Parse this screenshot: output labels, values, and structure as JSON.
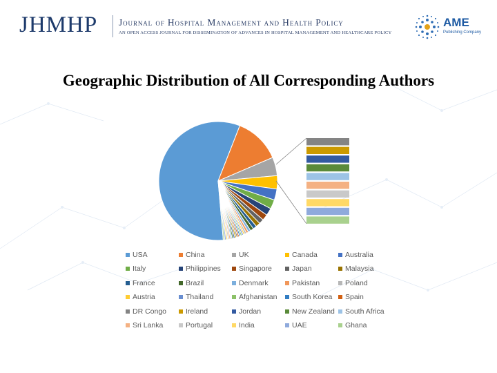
{
  "header": {
    "logo_text": "JHMHP",
    "journal_name": "Journal of Hospital Management and Health Policy",
    "journal_tagline": "an open access journal for dissemination of advances in hospital management and healthcare policy",
    "publisher_name": "AME",
    "publisher_sub": "Publishing Company"
  },
  "colors": {
    "brand_navy": "#1d3a6b",
    "publisher_blue": "#1d5aa3"
  },
  "chart_data": {
    "type": "pie",
    "title": "Geographic Distribution of All Corresponding Authors",
    "legend_position": "bottom",
    "categories": [
      "USA",
      "China",
      "UK",
      "Canada",
      "Australia",
      "Italy",
      "Philippines",
      "Singapore",
      "Japan",
      "Malaysia",
      "France",
      "Brazil",
      "Denmark",
      "Pakistan",
      "Poland",
      "Austria",
      "Thailand",
      "Afghanistan",
      "South Korea",
      "Spain",
      "DR Congo",
      "Ireland",
      "Jordan",
      "New Zealand",
      "South Africa",
      "Sri Lanka",
      "Portugal",
      "India",
      "UAE",
      "Ghana"
    ],
    "values": [
      57.0,
      12.5,
      5.0,
      3.6,
      3.0,
      2.5,
      2.0,
      1.6,
      1.3,
      1.2,
      1.0,
      0.9,
      0.7,
      0.6,
      0.5,
      0.4,
      0.4,
      0.4,
      0.4,
      0.4,
      0.4,
      0.4,
      0.4,
      0.4,
      0.4,
      0.4,
      0.4,
      0.4,
      0.4,
      0.4
    ],
    "colors": [
      "#5b9bd5",
      "#ed7d31",
      "#a5a5a5",
      "#ffc000",
      "#4472c4",
      "#70ad47",
      "#264478",
      "#9e480e",
      "#636363",
      "#997300",
      "#255e91",
      "#43682b",
      "#7cafdd",
      "#f1975a",
      "#b7b7b7",
      "#ffcd33",
      "#698ed0",
      "#8cc168",
      "#327dc2",
      "#d26012",
      "#848484",
      "#cc9a00",
      "#335aa1",
      "#5a8a39",
      "#9dc3e6",
      "#f4b183",
      "#c9c9c9",
      "#ffd966",
      "#8faadc",
      "#a9d18e"
    ],
    "bar_of_pie": {
      "colors": [
        "#848484",
        "#cc9a00",
        "#335aa1",
        "#5a8a39",
        "#9dc3e6",
        "#f4b183",
        "#c9c9c9",
        "#ffd966",
        "#8faadc",
        "#a9d18e"
      ]
    }
  }
}
